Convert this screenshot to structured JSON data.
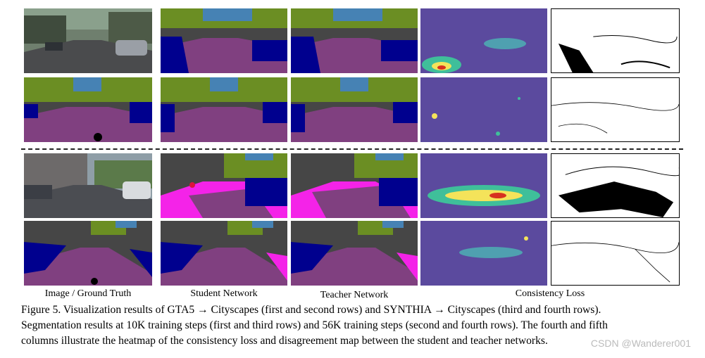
{
  "column_labels": {
    "image_gt": "Image / Ground Truth",
    "student": "Student Network",
    "teacher": "Teacher Network",
    "loss": "Consistency Loss"
  },
  "caption": {
    "line1": "Figure 5. Visualization results of GTA5 → Cityscapes (first and second rows) and SYNTHIA → Cityscapes (third and fourth rows).",
    "line2": "Segmentation results at 10K training steps (first and third rows) and 56K training steps (second and fourth rows).  The fourth and fifth",
    "line3": "columns illustrate the heatmap of the consistency loss and disagreement map between the student and teacher networks."
  },
  "watermark": "CSDN @Wanderer001",
  "colors": {
    "road": "#804080",
    "sky": "#4682b4",
    "vegetation": "#6b8e23",
    "building": "#464646",
    "car": "#00008e",
    "sidewalk": "#f423e8",
    "person": "#dc143c",
    "heat_bg": "#5b4a9e",
    "heat_mid": "#3fbf9a",
    "heat_hot": "#f4e35a",
    "heat_peak": "#d7301f"
  }
}
